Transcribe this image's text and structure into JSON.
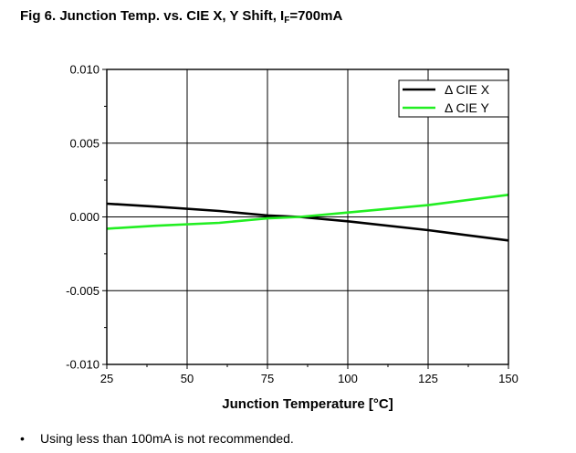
{
  "title": {
    "prefix": "Fig 6. Junction Temp. vs. CIE X, Y Shift, I",
    "subscript": "F",
    "suffix": "=700mA"
  },
  "note": {
    "bullet": "•",
    "text": "Using less than 100mA is not recommended."
  },
  "colors": {
    "cie_x": "#000000",
    "cie_y": "#22ee22",
    "grid": "#000000"
  },
  "chart_data": {
    "type": "line",
    "xlabel": "Junction Temperature [°C]",
    "ylabel": "",
    "xlim": [
      25,
      150
    ],
    "ylim": [
      -0.01,
      0.01
    ],
    "x_ticks": [
      25,
      50,
      75,
      100,
      125,
      150
    ],
    "y_ticks": [
      -0.01,
      -0.005,
      0.0,
      0.005,
      0.01
    ],
    "x_tick_labels": [
      "25",
      "50",
      "75",
      "100",
      "125",
      "150"
    ],
    "y_tick_labels": [
      "-0.010",
      "-0.005",
      "0.000",
      "0.005",
      "0.010"
    ],
    "grid": true,
    "legend_position": "top-right",
    "series": [
      {
        "name": "Δ CIE X",
        "color": "#000000",
        "x": [
          25,
          40,
          60,
          75,
          85,
          100,
          125,
          150
        ],
        "y": [
          0.0009,
          0.0007,
          0.0004,
          0.0001,
          0.0,
          -0.0003,
          -0.0009,
          -0.0016
        ]
      },
      {
        "name": "Δ CIE Y",
        "color": "#22ee22",
        "x": [
          25,
          40,
          60,
          75,
          85,
          100,
          125,
          150
        ],
        "y": [
          -0.0008,
          -0.0006,
          -0.0004,
          -0.0001,
          0.0,
          0.0003,
          0.0008,
          0.0015
        ]
      }
    ]
  }
}
